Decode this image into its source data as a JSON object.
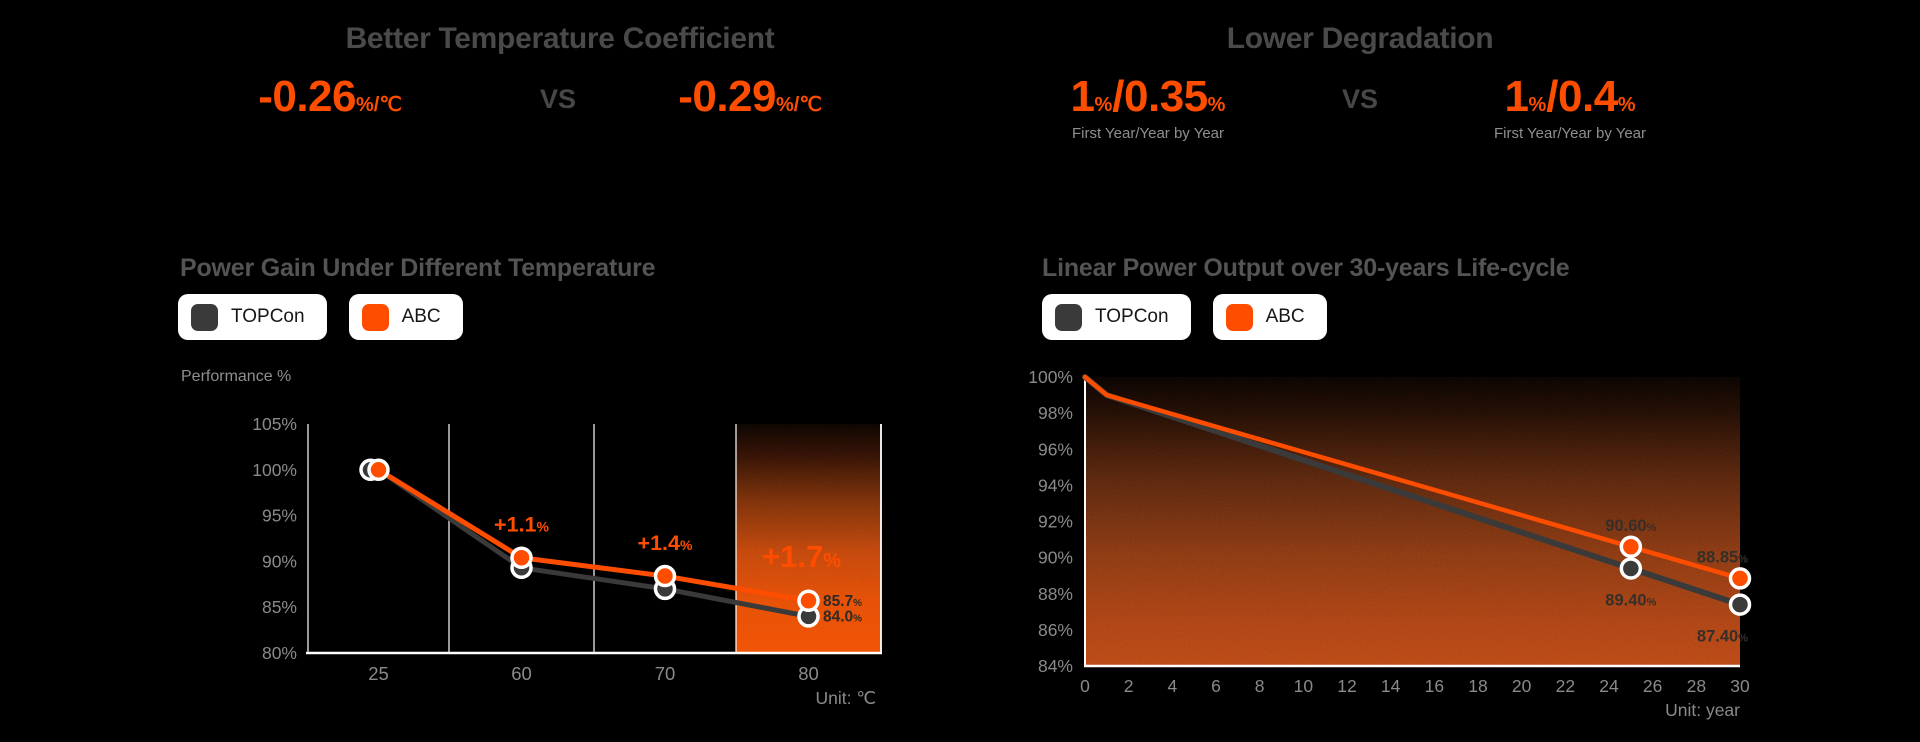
{
  "colors": {
    "accent": "#FF4D00",
    "dark_series": "#3A3A3A",
    "background": "#000000",
    "title_gray": "#4A4A4A",
    "axis_gray": "#8A8A8A",
    "dark_label": "#362F29"
  },
  "left_panel": {
    "title": "Better Temperature Coefficient",
    "comparison": {
      "left_parts": [
        [
          "-0.26",
          "big"
        ],
        [
          "%/℃",
          "small"
        ]
      ],
      "vs": "VS",
      "right_parts": [
        [
          "-0.29",
          "big"
        ],
        [
          "%/℃",
          "small"
        ]
      ]
    },
    "section_title": "Power Gain Under Different Temperature",
    "legend": [
      {
        "label": "TOPCon",
        "color": "#3A3A3A"
      },
      {
        "label": "ABC",
        "color": "#FF4D00"
      }
    ],
    "axis_label": "Performance %"
  },
  "right_panel": {
    "title": "Lower Degradation",
    "comparison": {
      "left_parts": [
        [
          "1",
          "big"
        ],
        [
          "%",
          "small"
        ],
        [
          "/0.35",
          "big"
        ],
        [
          "%",
          "small"
        ]
      ],
      "left_caption": "First Year/Year by Year",
      "vs": "VS",
      "right_parts": [
        [
          "1",
          "big"
        ],
        [
          "%",
          "small"
        ],
        [
          "/0.4",
          "big"
        ],
        [
          "%",
          "small"
        ]
      ],
      "right_caption": "First Year/Year by Year"
    },
    "section_title": "Linear Power Output over  30-years Life-cycle",
    "legend": [
      {
        "label": "TOPCon",
        "color": "#3A3A3A"
      },
      {
        "label": "ABC",
        "color": "#FF4D00"
      }
    ]
  },
  "chart_data": [
    {
      "type": "line",
      "title": "Power Gain Under Different Temperature",
      "ylabel": "Performance %",
      "x_unit_label": "Unit:  ℃",
      "categories": [
        "25",
        "60",
        "70",
        "80"
      ],
      "ytick_labels": [
        "105%",
        "100%",
        "95%",
        "90%",
        "85%",
        "80%"
      ],
      "ylim": [
        80,
        105
      ],
      "grid": "vertical-columns",
      "highlight_last_column": true,
      "series": [
        {
          "name": "TOPCon",
          "color": "#3A3A3A",
          "values": [
            100,
            89.3,
            87.0,
            84.0
          ]
        },
        {
          "name": "ABC",
          "color": "#FF4D00",
          "values": [
            100,
            90.4,
            88.4,
            85.7
          ]
        }
      ],
      "annotations": [
        {
          "text": "+1.1",
          "suffix": "%",
          "x_index": 1,
          "size": "normal"
        },
        {
          "text": "+1.4",
          "suffix": "%",
          "x_index": 2,
          "size": "normal"
        },
        {
          "text": "+1.7",
          "suffix": "%",
          "x_index": 3,
          "size": "large"
        }
      ],
      "end_labels": [
        {
          "text": "85.7",
          "suffix": "%",
          "series": "ABC",
          "value": 85.7
        },
        {
          "text": "84.0",
          "suffix": "%",
          "series": "TOPCon",
          "value": 84.0
        }
      ]
    },
    {
      "type": "line",
      "title": "Linear Power Output over  30-years Life-cycle",
      "x_unit_label": "Unit:  year",
      "xlim": [
        0,
        30
      ],
      "xtick_step": 2,
      "xtick_labels": [
        "0",
        "2",
        "4",
        "6",
        "8",
        "10",
        "12",
        "14",
        "16",
        "18",
        "20",
        "22",
        "24",
        "26",
        "28",
        "30"
      ],
      "ytick_labels": [
        "100%",
        "98%",
        "96%",
        "94%",
        "92%",
        "90%",
        "88%",
        "86%",
        "84%"
      ],
      "ylim": [
        84,
        100
      ],
      "grid": "none",
      "plot_background": "dark-to-orange-gradient",
      "series": [
        {
          "name": "TOPCon",
          "color": "#3A3A3A",
          "points": [
            [
              0,
              100
            ],
            [
              1,
              99
            ],
            [
              25,
              89.4
            ],
            [
              30,
              87.4
            ]
          ],
          "markers": [
            25,
            30
          ],
          "point_labels": [
            {
              "x": 25,
              "text": "89.40",
              "suffix": "%",
              "pos": "below"
            },
            {
              "x": 30,
              "text": "87.40",
              "suffix": "%",
              "pos": "below"
            }
          ]
        },
        {
          "name": "ABC",
          "color": "#FF4D00",
          "points": [
            [
              0,
              100
            ],
            [
              1,
              99
            ],
            [
              25,
              90.6
            ],
            [
              30,
              88.85
            ]
          ],
          "markers": [
            25,
            30
          ],
          "point_labels": [
            {
              "x": 25,
              "text": "90.60",
              "suffix": "%",
              "pos": "above"
            },
            {
              "x": 30,
              "text": "88.85",
              "suffix": "%",
              "pos": "above"
            }
          ]
        }
      ]
    }
  ]
}
